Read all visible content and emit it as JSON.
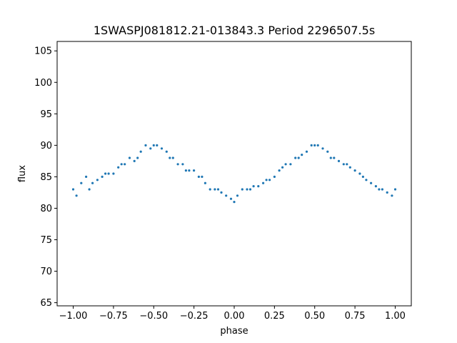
{
  "chart_data": {
    "type": "scatter",
    "title": "1SWASPJ081812.21-013843.3 Period 2296507.5s",
    "xlabel": "phase",
    "ylabel": "flux",
    "xlim": [
      -1.1,
      1.1
    ],
    "ylim": [
      64.5,
      106.5
    ],
    "x_ticks": [
      -1.0,
      -0.75,
      -0.5,
      -0.25,
      0.0,
      0.25,
      0.5,
      0.75,
      1.0
    ],
    "x_tick_labels": [
      "−1.00",
      "−0.75",
      "−0.50",
      "−0.25",
      "0.00",
      "0.25",
      "0.50",
      "0.75",
      "1.00"
    ],
    "y_ticks": [
      65,
      70,
      75,
      80,
      85,
      90,
      95,
      100,
      105
    ],
    "y_tick_labels": [
      "65",
      "70",
      "75",
      "80",
      "85",
      "90",
      "95",
      "100",
      "105"
    ],
    "grid": false,
    "legend": "none",
    "marker_color": "#1f77b4",
    "series": [
      {
        "points": [
          [
            -1.0,
            83
          ],
          [
            -0.98,
            82
          ],
          [
            -0.95,
            84
          ],
          [
            -0.92,
            85
          ],
          [
            -0.9,
            83
          ],
          [
            -0.88,
            84
          ],
          [
            -0.85,
            84.5
          ],
          [
            -0.82,
            85
          ],
          [
            -0.8,
            85.5
          ],
          [
            -0.78,
            85.5
          ],
          [
            -0.75,
            85.5
          ],
          [
            -0.72,
            86.5
          ],
          [
            -0.7,
            87
          ],
          [
            -0.68,
            87
          ],
          [
            -0.65,
            88
          ],
          [
            -0.62,
            87.5
          ],
          [
            -0.6,
            88
          ],
          [
            -0.58,
            89
          ],
          [
            -0.55,
            90
          ],
          [
            -0.52,
            89.5
          ],
          [
            -0.5,
            90
          ],
          [
            -0.48,
            90
          ],
          [
            -0.45,
            89.5
          ],
          [
            -0.42,
            89
          ],
          [
            -0.4,
            88
          ],
          [
            -0.38,
            88
          ],
          [
            -0.35,
            87
          ],
          [
            -0.32,
            87
          ],
          [
            -0.3,
            86
          ],
          [
            -0.28,
            86
          ],
          [
            -0.25,
            86
          ],
          [
            -0.22,
            85
          ],
          [
            -0.2,
            85
          ],
          [
            -0.18,
            84
          ],
          [
            -0.15,
            83
          ],
          [
            -0.12,
            83
          ],
          [
            -0.1,
            83
          ],
          [
            -0.08,
            82.5
          ],
          [
            -0.05,
            82
          ],
          [
            -0.02,
            81.5
          ],
          [
            0.0,
            81
          ],
          [
            0.02,
            82
          ],
          [
            0.05,
            83
          ],
          [
            0.08,
            83
          ],
          [
            0.1,
            83
          ],
          [
            0.12,
            83.5
          ],
          [
            0.15,
            83.5
          ],
          [
            0.18,
            84
          ],
          [
            0.2,
            84.5
          ],
          [
            0.22,
            84.5
          ],
          [
            0.25,
            85
          ],
          [
            0.28,
            86
          ],
          [
            0.3,
            86.5
          ],
          [
            0.32,
            87
          ],
          [
            0.35,
            87
          ],
          [
            0.38,
            88
          ],
          [
            0.4,
            88
          ],
          [
            0.42,
            88.5
          ],
          [
            0.45,
            89
          ],
          [
            0.48,
            90
          ],
          [
            0.5,
            90
          ],
          [
            0.52,
            90
          ],
          [
            0.55,
            89.5
          ],
          [
            0.58,
            89
          ],
          [
            0.6,
            88
          ],
          [
            0.62,
            88
          ],
          [
            0.65,
            87.5
          ],
          [
            0.68,
            87
          ],
          [
            0.7,
            87
          ],
          [
            0.72,
            86.5
          ],
          [
            0.75,
            86
          ],
          [
            0.78,
            85.5
          ],
          [
            0.8,
            85
          ],
          [
            0.82,
            84.5
          ],
          [
            0.85,
            84
          ],
          [
            0.88,
            83.5
          ],
          [
            0.9,
            83
          ],
          [
            0.92,
            83
          ],
          [
            0.95,
            82.5
          ],
          [
            0.98,
            82
          ],
          [
            1.0,
            83
          ]
        ]
      }
    ]
  }
}
